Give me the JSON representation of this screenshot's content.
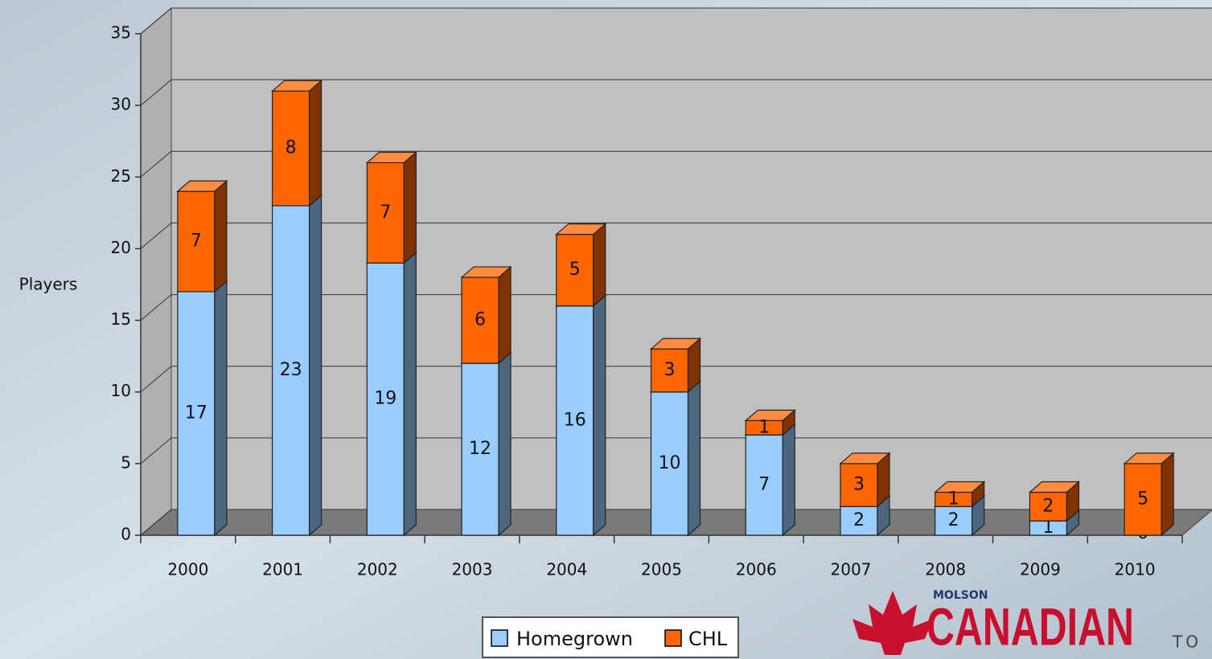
{
  "chart_data": {
    "type": "bar",
    "stacked": true,
    "categories": [
      "2000",
      "2001",
      "2002",
      "2003",
      "2004",
      "2005",
      "2006",
      "2007",
      "2008",
      "2009",
      "2010"
    ],
    "series": [
      {
        "name": "Homegrown",
        "color": "#99ccff",
        "values": [
          17,
          23,
          19,
          12,
          16,
          10,
          7,
          2,
          2,
          1,
          0
        ]
      },
      {
        "name": "CHL",
        "color": "#ff6600",
        "values": [
          7,
          8,
          7,
          6,
          5,
          3,
          1,
          3,
          1,
          2,
          5
        ]
      }
    ],
    "y_label": "Players",
    "ylim": [
      0,
      35
    ],
    "yticks": [
      0,
      5,
      10,
      15,
      20,
      25,
      30,
      35
    ],
    "grid": true,
    "legend": "bottom",
    "annotations": [
      "MOLSON",
      "CANADIAN",
      "TO"
    ]
  }
}
